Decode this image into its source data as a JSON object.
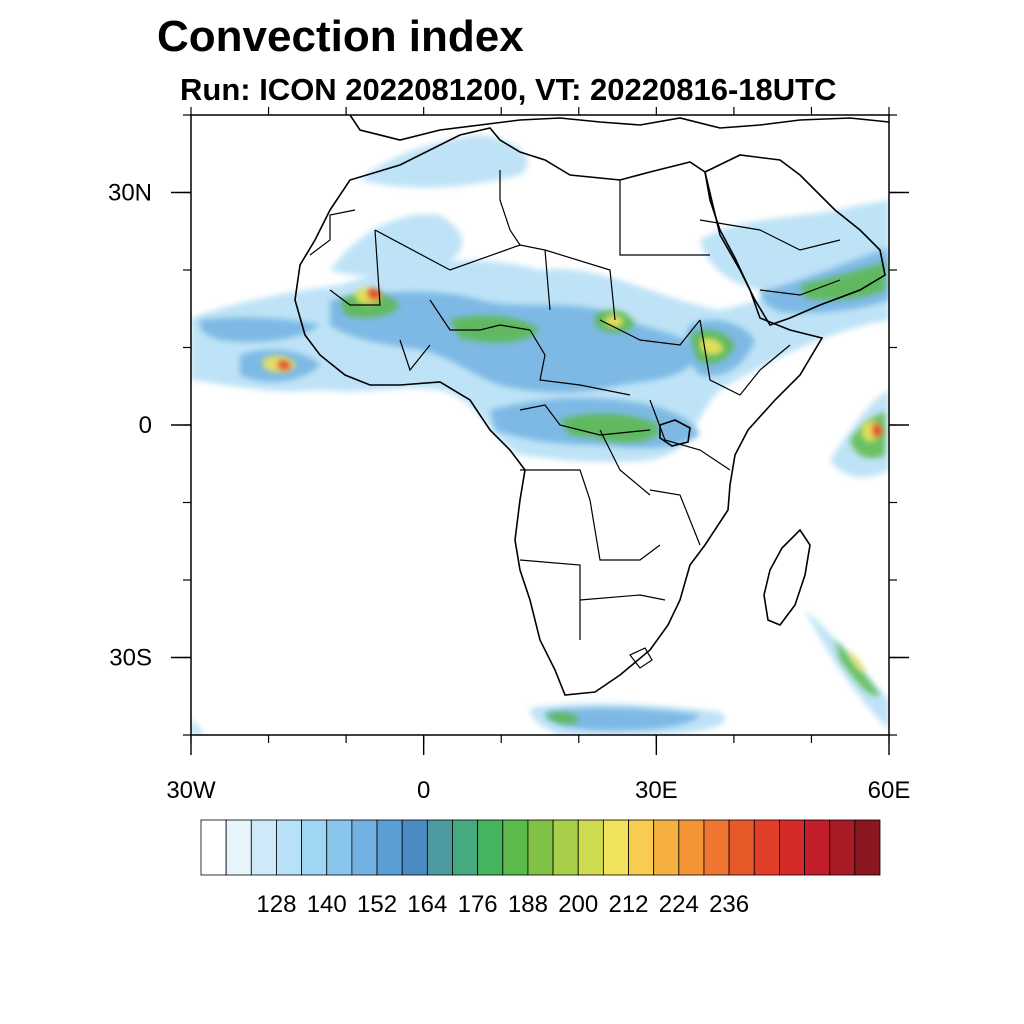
{
  "title": "Convection index",
  "subtitle": "Run: ICON 2022081200,  VT: 20220816-18UTC",
  "axes": {
    "x_ticks": [
      {
        "label": "30W",
        "lon": -30
      },
      {
        "label": "0",
        "lon": 0
      },
      {
        "label": "30E",
        "lon": 30
      },
      {
        "label": "60E",
        "lon": 60
      }
    ],
    "y_ticks": [
      {
        "label": "30N",
        "lat": 30
      },
      {
        "label": "0",
        "lat": 0
      },
      {
        "label": "30S",
        "lat": -30
      }
    ],
    "lon_range": [
      -30,
      60
    ],
    "lat_range": [
      -40,
      40
    ]
  },
  "colorbar": {
    "colors": [
      "#ffffff",
      "#e8f4fb",
      "#cfe9f8",
      "#b8e0f6",
      "#a0d6f4",
      "#88c6ec",
      "#72b2e2",
      "#5b9ed6",
      "#4a8bc4",
      "#4a9aa0",
      "#47a97f",
      "#45b45e",
      "#5bba4a",
      "#7fc246",
      "#a8ce4a",
      "#d0dc50",
      "#f0e25a",
      "#f8cc50",
      "#f5b040",
      "#f39437",
      "#ee7630",
      "#e8592a",
      "#e03e28",
      "#d42a28",
      "#c21e2a",
      "#a81a24",
      "#8c1620"
    ],
    "tick_labels": [
      "128",
      "140",
      "152",
      "164",
      "176",
      "188",
      "200",
      "212",
      "224",
      "236"
    ]
  }
}
